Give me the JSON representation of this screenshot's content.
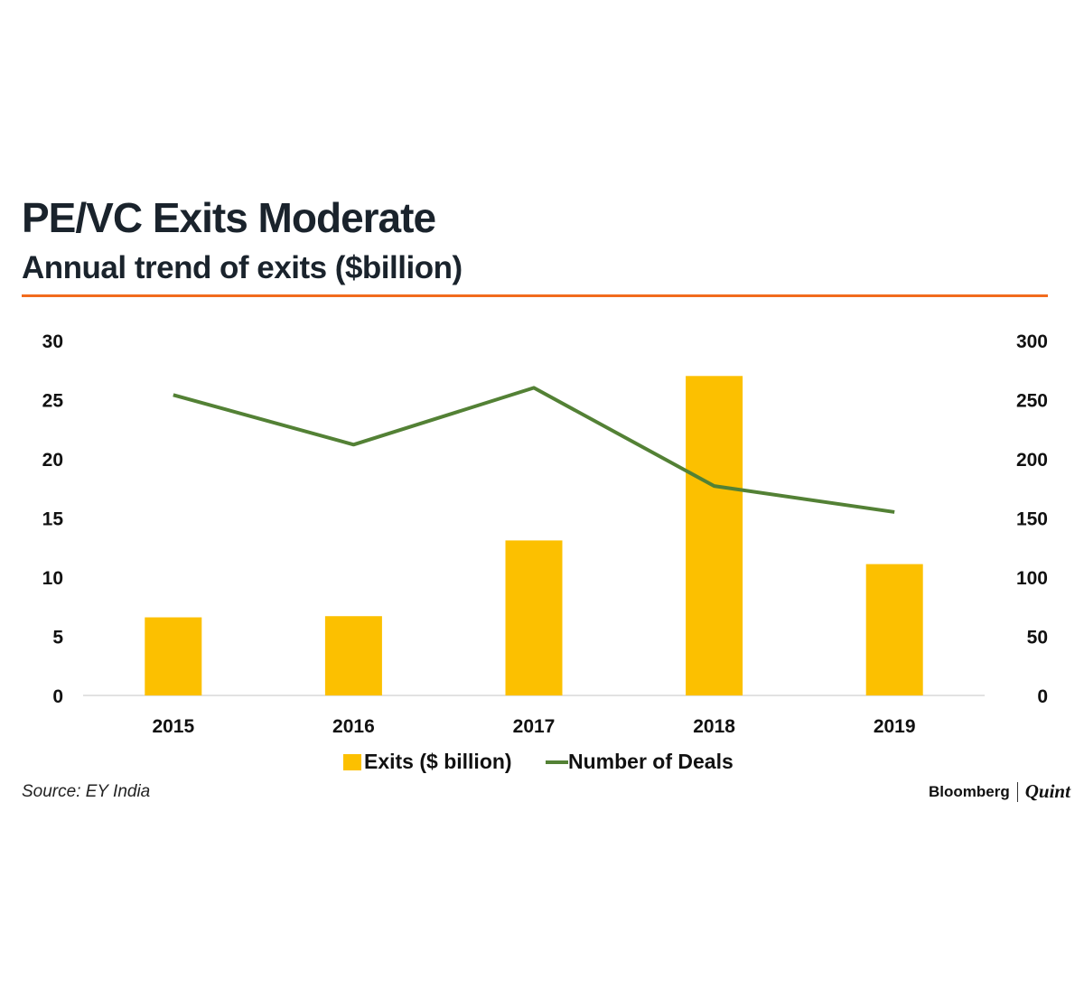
{
  "title": "PE/VC Exits Moderate",
  "subtitle": "Annual trend of exits ($billion)",
  "source": "Source: EY India",
  "brand": {
    "primary": "Bloomberg",
    "secondary": "Quint"
  },
  "colors": {
    "bar": "#fcc000",
    "line": "#538135",
    "rule": "#f26b1d"
  },
  "chart_data": {
    "type": "bar",
    "categories": [
      "2015",
      "2016",
      "2017",
      "2018",
      "2019"
    ],
    "series": [
      {
        "name": "Exits ($ billion)",
        "type": "bar",
        "axis": "left",
        "values": [
          6.6,
          6.7,
          13.1,
          27.0,
          11.1
        ]
      },
      {
        "name": "Number of Deals",
        "type": "line",
        "axis": "right",
        "values": [
          254,
          212,
          260,
          177,
          155
        ]
      }
    ],
    "y_left": {
      "ylim": [
        0,
        30
      ],
      "ticks": [
        "0",
        "5",
        "10",
        "15",
        "20",
        "25",
        "30"
      ]
    },
    "y_right": {
      "ylim": [
        0,
        300
      ],
      "ticks": [
        "0",
        "50",
        "100",
        "150",
        "200",
        "250",
        "300"
      ]
    },
    "legend": "bottom",
    "grid": false
  }
}
